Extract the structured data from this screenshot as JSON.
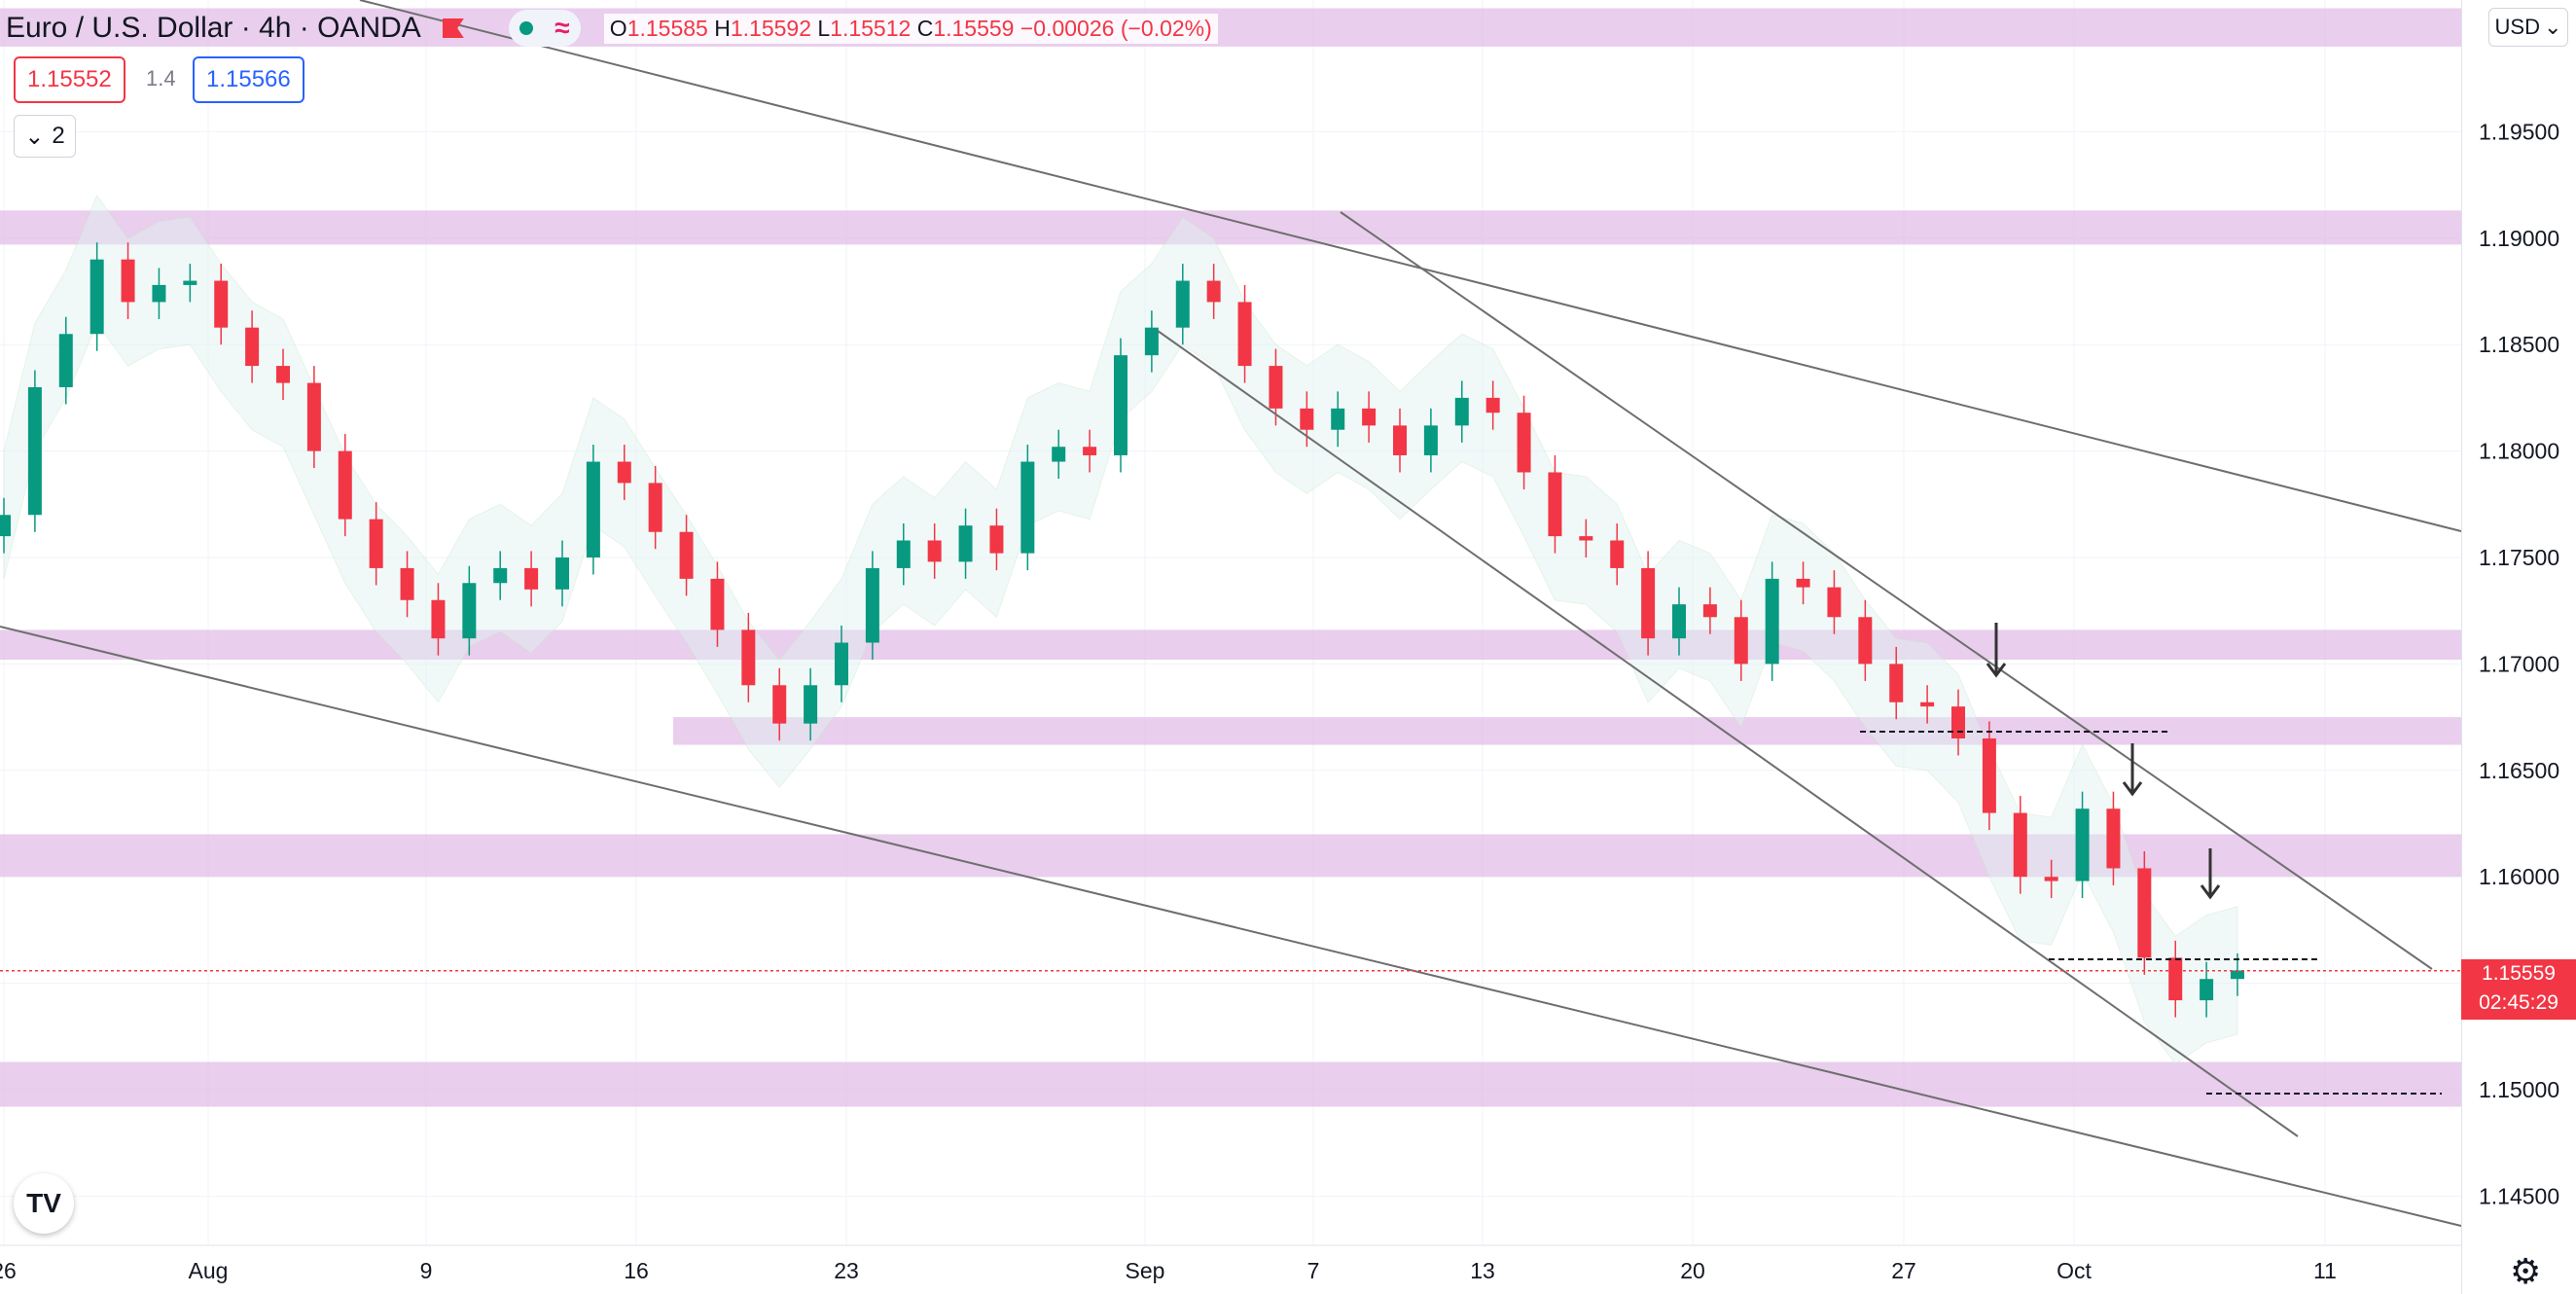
{
  "header": {
    "symbol": "Euro / U.S. Dollar · 4h · OANDA",
    "ohlc": {
      "o_label": "O",
      "o": "1.15585",
      "h_label": "H",
      "h": "1.15592",
      "l_label": "L",
      "l": "1.15512",
      "c_label": "C",
      "c": "1.15559",
      "change": "−0.00026 (−0.02%)"
    }
  },
  "trade": {
    "sell_price": "1.15552",
    "spread": "1.4",
    "buy_price": "1.15566"
  },
  "indicators": {
    "count": "2"
  },
  "currency": {
    "label": "USD"
  },
  "price_tag": {
    "price": "1.15559",
    "countdown": "02:45:29"
  },
  "chart_data": {
    "type": "candlestick",
    "symbol": "EURUSD",
    "timeframe": "4h",
    "ylim": [
      1.1425,
      1.2
    ],
    "y_ticks": [
      "1.14500",
      "1.15000",
      "1.15500",
      "1.16000",
      "1.16500",
      "1.17000",
      "1.17500",
      "1.18000",
      "1.18500",
      "1.19000",
      "1.19500"
    ],
    "x_ticks": [
      "26",
      "Aug",
      "9",
      "16",
      "23",
      "Sep",
      "7",
      "13",
      "20",
      "27",
      "Oct",
      "11"
    ],
    "last_price": 1.15559,
    "closes": [
      1.177,
      1.183,
      1.1855,
      1.189,
      1.187,
      1.1878,
      1.188,
      1.1858,
      1.184,
      1.1832,
      1.18,
      1.1768,
      1.1745,
      1.173,
      1.1712,
      1.1738,
      1.1745,
      1.1735,
      1.175,
      1.1795,
      1.1785,
      1.1762,
      1.174,
      1.1716,
      1.169,
      1.1672,
      1.169,
      1.171,
      1.1745,
      1.1758,
      1.1748,
      1.1765,
      1.1752,
      1.1795,
      1.1802,
      1.1798,
      1.1845,
      1.1858,
      1.188,
      1.187,
      1.184,
      1.182,
      1.181,
      1.182,
      1.1812,
      1.1798,
      1.1812,
      1.1825,
      1.1818,
      1.179,
      1.176,
      1.1758,
      1.1745,
      1.1712,
      1.1728,
      1.1722,
      1.17,
      1.174,
      1.1736,
      1.1722,
      1.17,
      1.1682,
      1.168,
      1.1665,
      1.163,
      1.16,
      1.1598,
      1.1632,
      1.1604,
      1.1562,
      1.1542,
      1.1552,
      1.1556
    ],
    "annotations": {
      "zones": [
        [
          1.199,
          1.2008
        ],
        [
          1.1897,
          1.1913
        ],
        [
          1.1702,
          1.1716
        ],
        [
          1.1662,
          1.1675
        ],
        [
          1.16,
          1.162
        ],
        [
          1.1492,
          1.1513
        ]
      ],
      "channel_lines": 4,
      "arrows": 3
    }
  },
  "colors": {
    "up": "#089981",
    "down": "#f23645",
    "zone": "#e1bee7",
    "line": "#6e6e6e",
    "band": "#e0f2f1"
  }
}
